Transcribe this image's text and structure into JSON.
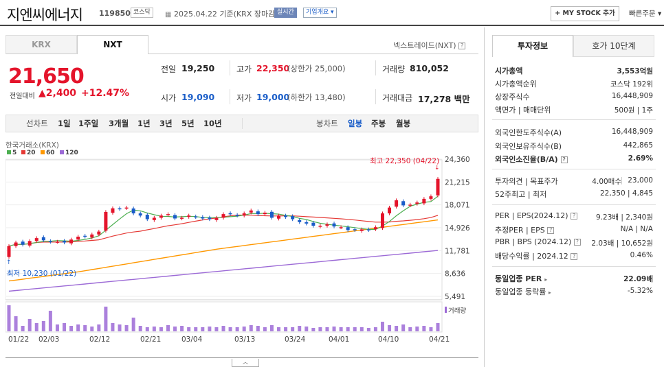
{
  "header": {
    "name": "지엔씨에너지",
    "code": "119850",
    "market": "코스닥",
    "date": "2025.04.22",
    "basis": "기준(KRX 장마감)",
    "realtime": "실시간",
    "overview": "기업개요",
    "mystock": "+ MY STOCK 추가",
    "quick_order": "빠른주문"
  },
  "tabs": {
    "krx": "KRX",
    "nxt": "NXT",
    "nxt_rate": "넥스트레이드(NXT)"
  },
  "price": {
    "current": "21,650",
    "change_label": "전일대비",
    "change": "▲2,400",
    "change_pct": "+12.47%",
    "prev_label": "전일",
    "prev": "19,250",
    "open_label": "시가",
    "open": "19,090",
    "high_label": "고가",
    "high": "22,350",
    "upper": "(상한가 25,000)",
    "low_label": "저가",
    "low": "19,000",
    "lower": "(하한가 13,480)",
    "volume_label": "거래량",
    "volume": "810,052",
    "amount_label": "거래대금",
    "amount": "17,278 백만"
  },
  "periods": {
    "line": "선차트",
    "items": [
      "1일",
      "1주일",
      "3개월",
      "1년",
      "3년",
      "5년",
      "10년"
    ],
    "candle": "봉차트",
    "candle_items": [
      "일봉",
      "주봉",
      "월봉"
    ]
  },
  "chart_data": {
    "type": "candlestick",
    "title": "한국거래소(KRX)",
    "ma_legend": [
      "5",
      "20",
      "60",
      "120"
    ],
    "ma_colors": [
      "#4caf50",
      "#e53935",
      "#ff9800",
      "#9c6ad6"
    ],
    "y_ticks": [
      "24,360",
      "21,215",
      "18,071",
      "14,926",
      "11,781",
      "8,636",
      "5,491"
    ],
    "y_range": [
      5491,
      24360
    ],
    "x_labels": [
      "01/22",
      "02/03",
      "02/12",
      "02/21",
      "03/04",
      "03/13",
      "03/24",
      "04/01",
      "04/10",
      "04/21"
    ],
    "high_note": "최고 22,350 (04/22)",
    "low_note": "최저 10,230 (01/22)",
    "volume_label": "거래량",
    "closes": [
      12400,
      12900,
      12600,
      13100,
      13500,
      13200,
      13000,
      13000,
      12900,
      13300,
      13700,
      13700,
      14000,
      14400,
      17100,
      17600,
      17500,
      17700,
      16900,
      16600,
      16100,
      16300,
      16600,
      16800,
      16200,
      16300,
      16600,
      16400,
      16200,
      16100,
      16300,
      16800,
      16800,
      16600,
      16900,
      17300,
      16800,
      17000,
      16300,
      16600,
      16400,
      16100,
      15700,
      15500,
      15200,
      15200,
      15400,
      15100,
      15000,
      14600,
      14600,
      14700,
      14600,
      15000,
      16900,
      17700,
      18700,
      18000,
      18100,
      18400,
      18900,
      19250,
      21650
    ],
    "volumes": [
      38,
      22,
      8,
      18,
      12,
      15,
      30,
      10,
      12,
      8,
      10,
      9,
      7,
      10,
      36,
      12,
      10,
      9,
      20,
      8,
      6,
      7,
      6,
      9,
      7,
      8,
      6,
      6,
      6,
      7,
      6,
      8,
      6,
      6,
      7,
      9,
      8,
      6,
      9,
      6,
      6,
      6,
      8,
      7,
      5,
      6,
      6,
      7,
      6,
      6,
      6,
      6,
      5,
      6,
      14,
      9,
      8,
      10,
      6,
      7,
      8,
      6,
      12
    ]
  },
  "tabs_right": {
    "invest": "투자정보",
    "quotes": "호가 10단계"
  },
  "invest": {
    "market_cap_label": "시가총액",
    "market_cap": "3,553억원",
    "rank_label": "시가총액순위",
    "rank": "코스닥 192위",
    "shares_label": "상장주식수",
    "shares": "16,448,909",
    "par_label": "액면가 | 매매단위",
    "par": "500원 | 1주",
    "foreign_limit_label": "외국인한도주식수(A)",
    "foreign_limit": "16,448,909",
    "foreign_hold_label": "외국인보유주식수(B)",
    "foreign_hold": "442,865",
    "foreign_ratio_label": "외국인소진율(B/A)",
    "foreign_ratio": "2.69%",
    "opinion_label": "투자의견 | 목표주가",
    "opinion": "4.00매수",
    "target": "23,000",
    "week52_label": "52주최고 | 최저",
    "week52": "22,350 | 4,845",
    "per_label": "PER | EPS(2024.12)",
    "per": "9.23배 | 2,340원",
    "est_label": "추정PER | EPS",
    "est": "N/A | N/A",
    "pbr_label": "PBR | BPS (2024.12)",
    "pbr": "2.03배 | 10,652원",
    "div_label": "배당수익률 | 2024.12",
    "div": "0.46%",
    "sector_per_label": "동일업종 PER",
    "sector_per": "22.09배",
    "sector_rate_label": "동일업종 등락률",
    "sector_rate": "-5.32%"
  }
}
